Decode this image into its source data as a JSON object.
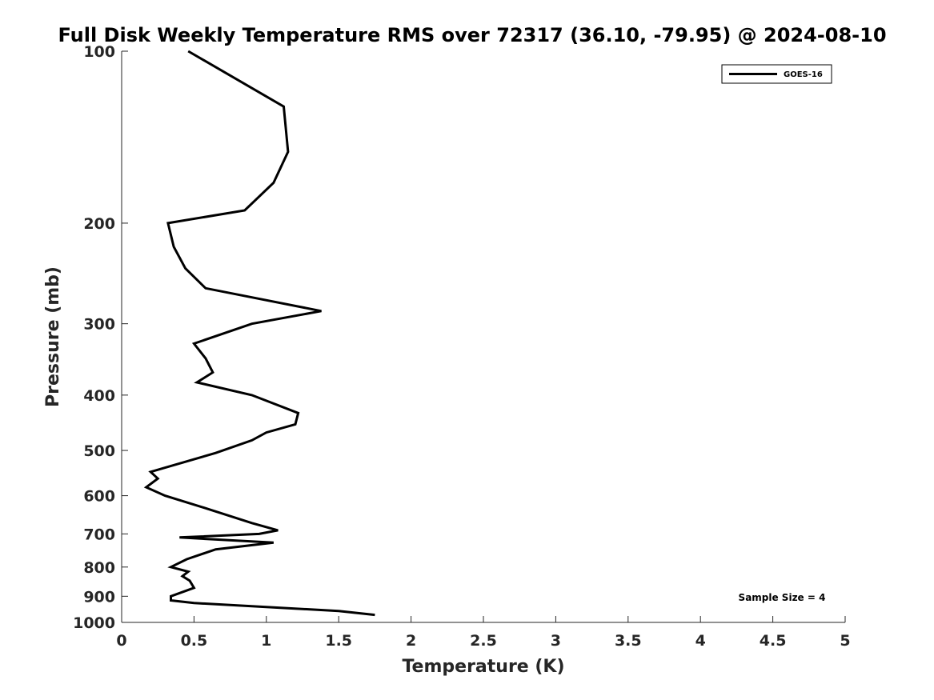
{
  "chart_data": {
    "type": "line",
    "title": "Full Disk Weekly Temperature RMS over 72317 (36.10, -79.95) @ 2024-08-10",
    "xlabel": "Temperature (K)",
    "ylabel": "Pressure (mb)",
    "xlim": [
      0,
      5
    ],
    "ylim": [
      100,
      1000
    ],
    "y_scale": "log",
    "y_reversed": true,
    "x_ticks": [
      "0",
      "0.5",
      "1",
      "1.5",
      "2",
      "2.5",
      "3",
      "3.5",
      "4",
      "4.5",
      "5"
    ],
    "y_ticks": [
      "100",
      "200",
      "300",
      "400",
      "500",
      "600",
      "700",
      "800",
      "900",
      "1000"
    ],
    "grid": false,
    "legend_position": "top-right",
    "series": [
      {
        "name": "GOES-16",
        "color": "#000000",
        "points": [
          [
            0.46,
            100
          ],
          [
            1.12,
            125
          ],
          [
            1.15,
            150
          ],
          [
            1.05,
            170
          ],
          [
            0.85,
            190
          ],
          [
            0.32,
            200
          ],
          [
            0.36,
            220
          ],
          [
            0.44,
            240
          ],
          [
            0.58,
            260
          ],
          [
            1.38,
            285
          ],
          [
            0.9,
            300
          ],
          [
            0.5,
            325
          ],
          [
            0.58,
            345
          ],
          [
            0.63,
            365
          ],
          [
            0.52,
            380
          ],
          [
            0.9,
            400
          ],
          [
            1.22,
            430
          ],
          [
            1.2,
            450
          ],
          [
            1.0,
            465
          ],
          [
            0.9,
            480
          ],
          [
            0.65,
            505
          ],
          [
            0.2,
            545
          ],
          [
            0.25,
            560
          ],
          [
            0.17,
            580
          ],
          [
            0.3,
            600
          ],
          [
            0.57,
            630
          ],
          [
            0.9,
            670
          ],
          [
            1.08,
            690
          ],
          [
            0.95,
            700
          ],
          [
            0.4,
            710
          ],
          [
            1.05,
            725
          ],
          [
            0.65,
            745
          ],
          [
            0.45,
            775
          ],
          [
            0.34,
            800
          ],
          [
            0.46,
            815
          ],
          [
            0.42,
            830
          ],
          [
            0.47,
            845
          ],
          [
            0.5,
            870
          ],
          [
            0.34,
            900
          ],
          [
            0.34,
            915
          ],
          [
            0.5,
            925
          ],
          [
            1.5,
            955
          ],
          [
            1.75,
            970
          ]
        ]
      }
    ],
    "annotations": [
      "Sample Size = 4"
    ]
  }
}
